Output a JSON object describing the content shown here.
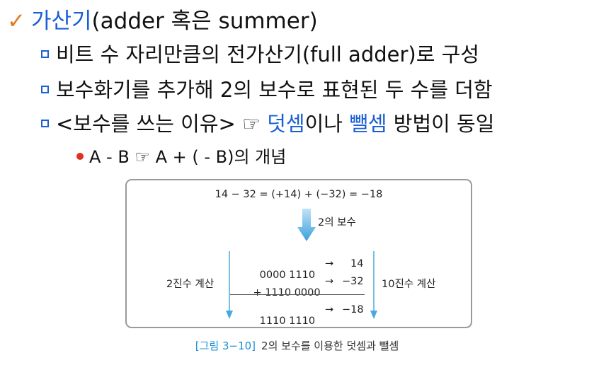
{
  "title": {
    "check": "✓",
    "term": "가산기",
    "rest": "(adder 혹은 summer)"
  },
  "bullets": [
    {
      "text": "비트 수 자리만큼의 전가산기(full adder)로 구성"
    },
    {
      "text": "보수화기를 추가해 2의 보수로 표현된 두 수를 더함"
    },
    {
      "pre": "<보수를 쓰는 이유> ☞ ",
      "hl1": "덧셈",
      "mid": "이나 ",
      "hl2": "뺄셈",
      "post": " 방법이 동일"
    }
  ],
  "sub_bullet": "A - B ☞ A + ( - B)의 개념",
  "figure": {
    "equation": "14 − 32 = (+14) + (−32) = −18",
    "complement_label": "2의 보수",
    "binary_label": "2진수 계산",
    "decimal_label": "10진수 계산",
    "rows": [
      {
        "bin": "  0000 1110",
        "arrow": "→",
        "dec": "14"
      },
      {
        "bin": "+ 1110 0000",
        "arrow": "→",
        "dec": "−32"
      },
      {
        "bin": "  1110 1110",
        "arrow": "→",
        "dec": "−18"
      }
    ]
  },
  "caption": {
    "label": "[그림 3−10]",
    "text": "2의 보수를 이용한 덧셈과 뺄셈"
  },
  "colors": {
    "accent_blue": "#1a5fd6",
    "check_orange": "#e07a1f",
    "bullet_red": "#e03020",
    "arrow_blue": "#4aa8e0"
  }
}
